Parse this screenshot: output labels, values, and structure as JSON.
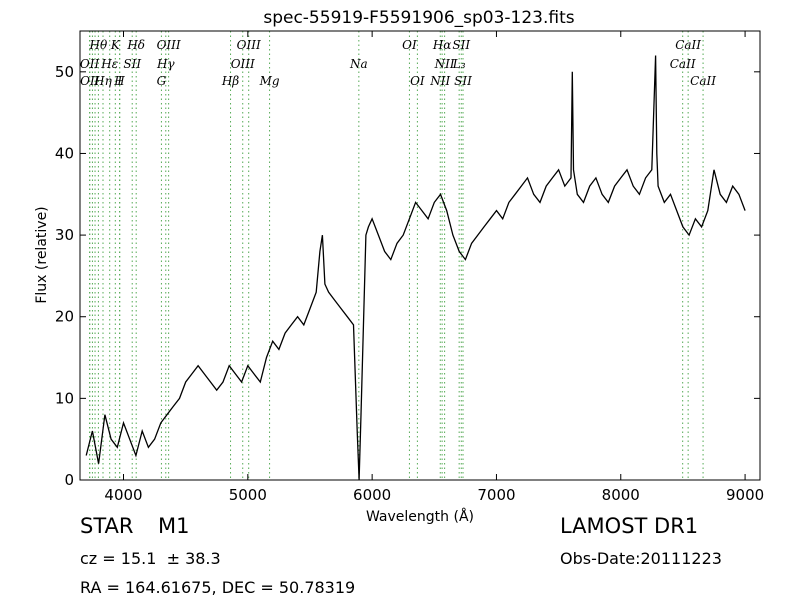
{
  "chart_data": {
    "type": "line",
    "title": "spec-55919-F5591906_sp03-123.fits",
    "xlabel": "Wavelength (Å)",
    "ylabel": "Flux (relative)",
    "xlim": [
      3650,
      9120
    ],
    "ylim": [
      0,
      55
    ],
    "xticks": [
      4000,
      5000,
      6000,
      7000,
      8000,
      9000
    ],
    "yticks": [
      0,
      10,
      20,
      30,
      40,
      50
    ],
    "grid": false,
    "colors": {
      "spectrum": "#000000",
      "lines": "#55aa55"
    },
    "spectrum": {
      "x": [
        3700,
        3750,
        3800,
        3850,
        3900,
        3950,
        4000,
        4050,
        4100,
        4150,
        4200,
        4250,
        4300,
        4350,
        4400,
        4450,
        4500,
        4550,
        4600,
        4650,
        4700,
        4750,
        4800,
        4850,
        4900,
        4950,
        5000,
        5050,
        5100,
        5150,
        5200,
        5250,
        5300,
        5350,
        5400,
        5450,
        5500,
        5550,
        5580,
        5600,
        5620,
        5650,
        5700,
        5750,
        5800,
        5850,
        5880,
        5895,
        5910,
        5950,
        5970,
        6000,
        6050,
        6100,
        6150,
        6200,
        6250,
        6300,
        6350,
        6400,
        6450,
        6500,
        6550,
        6600,
        6650,
        6700,
        6750,
        6800,
        6850,
        6900,
        6950,
        7000,
        7050,
        7100,
        7150,
        7200,
        7250,
        7300,
        7350,
        7400,
        7450,
        7500,
        7550,
        7600,
        7610,
        7620,
        7650,
        7700,
        7750,
        7800,
        7850,
        7900,
        7950,
        8000,
        8050,
        8100,
        8150,
        8200,
        8250,
        8280,
        8290,
        8300,
        8350,
        8400,
        8450,
        8500,
        8550,
        8600,
        8650,
        8700,
        8750,
        8800,
        8850,
        8900,
        8950,
        9000
      ],
      "y": [
        3,
        6,
        2,
        8,
        5,
        4,
        7,
        5,
        3,
        6,
        4,
        5,
        7,
        8,
        9,
        10,
        12,
        13,
        14,
        13,
        12,
        11,
        12,
        14,
        13,
        12,
        14,
        13,
        12,
        15,
        17,
        16,
        18,
        19,
        20,
        19,
        21,
        23,
        28,
        30,
        24,
        23,
        22,
        21,
        20,
        19,
        6,
        0,
        8,
        30,
        31,
        32,
        30,
        28,
        27,
        29,
        30,
        32,
        34,
        33,
        32,
        34,
        35,
        33,
        30,
        28,
        27,
        29,
        30,
        31,
        32,
        33,
        32,
        34,
        35,
        36,
        37,
        35,
        34,
        36,
        37,
        38,
        36,
        37,
        50,
        38,
        35,
        34,
        36,
        37,
        35,
        34,
        36,
        37,
        38,
        36,
        35,
        37,
        38,
        52,
        40,
        36,
        34,
        35,
        33,
        31,
        30,
        32,
        31,
        33,
        38,
        35,
        34,
        36,
        35,
        33
      ]
    },
    "emission_labels_top": [
      {
        "text": "Hθ",
        "x": 3798
      },
      {
        "text": "K",
        "x": 3934
      },
      {
        "text": "Hδ",
        "x": 4102
      },
      {
        "text": "OIII",
        "x": 4363
      },
      {
        "text": "OIII",
        "x": 5007
      },
      {
        "text": "OI",
        "x": 6300
      },
      {
        "text": "Hα",
        "x": 6563
      },
      {
        "text": "SII",
        "x": 6717
      },
      {
        "text": "CaII",
        "x": 8542
      }
    ],
    "emission_labels_mid": [
      {
        "text": "OII",
        "x": 3727
      },
      {
        "text": "Hε",
        "x": 3889
      },
      {
        "text": "SII",
        "x": 4070
      },
      {
        "text": "Hγ",
        "x": 4340
      },
      {
        "text": "OIII",
        "x": 4959
      },
      {
        "text": "Na",
        "x": 5893
      },
      {
        "text": "NII",
        "x": 6583
      },
      {
        "text": "L₃",
        "x": 6700
      },
      {
        "text": "CaII",
        "x": 8498
      }
    ],
    "emission_labels_low": [
      {
        "text": "OII",
        "x": 3729
      },
      {
        "text": "Hη",
        "x": 3835
      },
      {
        "text": "I",
        "x": 3970
      },
      {
        "text": "H",
        "x": 3968
      },
      {
        "text": "G",
        "x": 4305
      },
      {
        "text": "Hβ",
        "x": 4861
      },
      {
        "text": "Mg",
        "x": 5175
      },
      {
        "text": "OI",
        "x": 6364
      },
      {
        "text": "NII",
        "x": 6548
      },
      {
        "text": "SII",
        "x": 6731
      },
      {
        "text": "CaII",
        "x": 8662
      }
    ],
    "line_markers": [
      3727,
      3729,
      3750,
      3771,
      3798,
      3835,
      3889,
      3934,
      3968,
      3970,
      4070,
      4102,
      4305,
      4340,
      4363,
      4861,
      4959,
      5007,
      5175,
      5893,
      6300,
      6364,
      6548,
      6563,
      6583,
      6700,
      6717,
      6731,
      8498,
      8542,
      8662
    ]
  },
  "footer": {
    "object_class": "STAR",
    "subclass": "M1",
    "survey": "LAMOST DR1",
    "redshift": "cz = 15.1  ± 38.3",
    "obs_date": "Obs-Date:20111223",
    "coords": "RA = 164.61675, DEC = 50.78319"
  }
}
